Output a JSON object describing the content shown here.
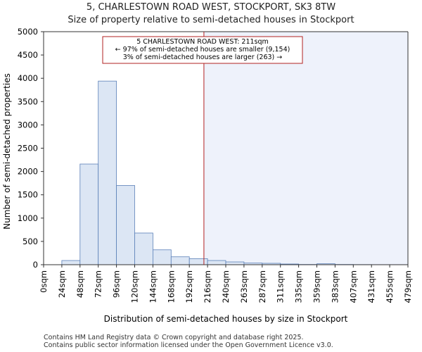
{
  "chart_data": {
    "type": "bar",
    "title": "5, CHARLESTOWN ROAD WEST, STOCKPORT, SK3 8TW",
    "subtitle": "Size of property relative to semi-detached houses in Stockport",
    "xlabel": "Distribution of semi-detached houses by size in Stockport",
    "ylabel": "Number of semi-detached properties",
    "ylim": [
      0,
      5000
    ],
    "yticks": [
      0,
      500,
      1000,
      1500,
      2000,
      2500,
      3000,
      3500,
      4000,
      4500,
      5000
    ],
    "categories": [
      "0sqm",
      "24sqm",
      "48sqm",
      "72sqm",
      "96sqm",
      "120sqm",
      "144sqm",
      "168sqm",
      "192sqm",
      "216sqm",
      "240sqm",
      "263sqm",
      "287sqm",
      "311sqm",
      "335sqm",
      "359sqm",
      "383sqm",
      "407sqm",
      "431sqm",
      "455sqm",
      "479sqm"
    ],
    "values": [
      0,
      90,
      2160,
      3940,
      1700,
      680,
      320,
      170,
      130,
      90,
      60,
      35,
      30,
      15,
      5,
      20,
      5,
      3,
      2,
      2,
      2
    ],
    "marker_value": 211,
    "marker_bin": 8.8,
    "annotation": {
      "line1": "5 CHARLESTOWN ROAD WEST: 211sqm",
      "line2": "← 97% of semi-detached houses are smaller (9,154)",
      "line3": "3% of semi-detached houses are larger (263) →"
    },
    "colors": {
      "bar_fill": "#dce6f4",
      "bar_stroke": "#5b80b8",
      "marker": "#b22222",
      "shade": "#eef2fb"
    }
  },
  "footer": {
    "line1": "Contains HM Land Registry data © Crown copyright and database right 2025.",
    "line2": "Contains public sector information licensed under the Open Government Licence v3.0."
  }
}
